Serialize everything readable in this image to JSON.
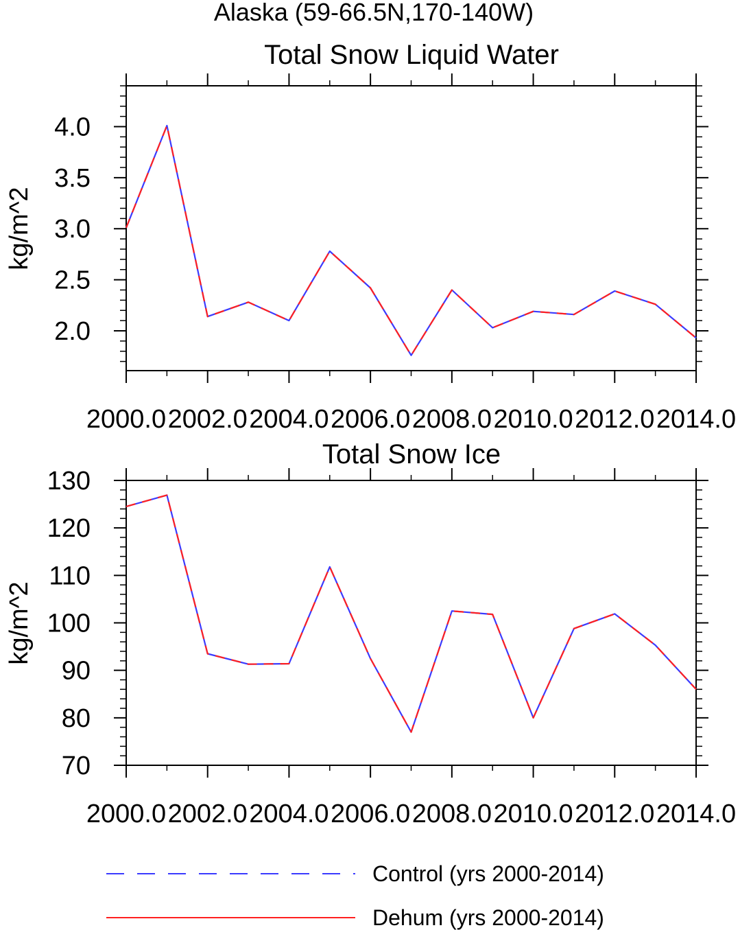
{
  "figure_title": "Alaska (59-66.5N,170-140W)",
  "legend": {
    "placement": "bottom",
    "entries": [
      {
        "label": "Control (yrs 2000-2014)",
        "color": "#3a3aff",
        "style": "dashed"
      },
      {
        "label": "Dehum (yrs 2000-2014)",
        "color": "#ff2020",
        "style": "solid"
      }
    ]
  },
  "chart_data": [
    {
      "type": "line",
      "title": "Total Snow Liquid Water",
      "xlabel": "",
      "ylabel": "kg/m^2",
      "xlim": [
        2000,
        2014
      ],
      "ylim": [
        1.61,
        4.4
      ],
      "grid": false,
      "x_ticks": [
        2000,
        2002,
        2004,
        2006,
        2008,
        2010,
        2012,
        2014
      ],
      "x_tick_labels": [
        "2000.0",
        "2002.0",
        "2004.0",
        "2006.0",
        "2008.0",
        "2010.0",
        "2012.0",
        "2014.0"
      ],
      "y_ticks": [
        2.0,
        2.5,
        3.0,
        3.5,
        4.0
      ],
      "y_tick_labels": [
        "2.0",
        "2.5",
        "3.0",
        "3.5",
        "4.0"
      ],
      "x": [
        2000,
        2001,
        2002,
        2003,
        2004,
        2005,
        2006,
        2007,
        2008,
        2009,
        2010,
        2011,
        2012,
        2013,
        2014
      ],
      "series": [
        {
          "name": "Control (yrs 2000-2014)",
          "values": [
            3.01,
            4.01,
            2.14,
            2.28,
            2.1,
            2.78,
            2.42,
            1.76,
            2.4,
            2.03,
            2.19,
            2.16,
            2.39,
            2.26,
            1.93
          ]
        },
        {
          "name": "Dehum (yrs 2000-2014)",
          "values": [
            3.01,
            4.01,
            2.14,
            2.28,
            2.1,
            2.78,
            2.42,
            1.76,
            2.4,
            2.03,
            2.19,
            2.16,
            2.39,
            2.26,
            1.93
          ]
        }
      ]
    },
    {
      "type": "line",
      "title": "Total Snow Ice",
      "xlabel": "",
      "ylabel": "kg/m^2",
      "xlim": [
        2000,
        2014
      ],
      "ylim": [
        70,
        130
      ],
      "grid": false,
      "x_ticks": [
        2000,
        2002,
        2004,
        2006,
        2008,
        2010,
        2012,
        2014
      ],
      "x_tick_labels": [
        "2000.0",
        "2002.0",
        "2004.0",
        "2006.0",
        "2008.0",
        "2010.0",
        "2012.0",
        "2014.0"
      ],
      "y_ticks": [
        70,
        80,
        90,
        100,
        110,
        120,
        130
      ],
      "y_tick_labels": [
        "70",
        "80",
        "90",
        "100",
        "110",
        "120",
        "130"
      ],
      "x": [
        2000,
        2001,
        2002,
        2003,
        2004,
        2005,
        2006,
        2007,
        2008,
        2009,
        2010,
        2011,
        2012,
        2013,
        2014
      ],
      "series": [
        {
          "name": "Control (yrs 2000-2014)",
          "values": [
            124.5,
            126.9,
            93.5,
            91.3,
            91.4,
            111.8,
            92.5,
            77.0,
            102.5,
            101.8,
            80.0,
            98.8,
            101.9,
            95.3,
            86.0
          ]
        },
        {
          "name": "Dehum (yrs 2000-2014)",
          "values": [
            124.5,
            126.9,
            93.5,
            91.3,
            91.4,
            111.8,
            92.5,
            77.0,
            102.5,
            101.8,
            80.0,
            98.8,
            101.9,
            95.3,
            86.0
          ]
        }
      ]
    }
  ]
}
